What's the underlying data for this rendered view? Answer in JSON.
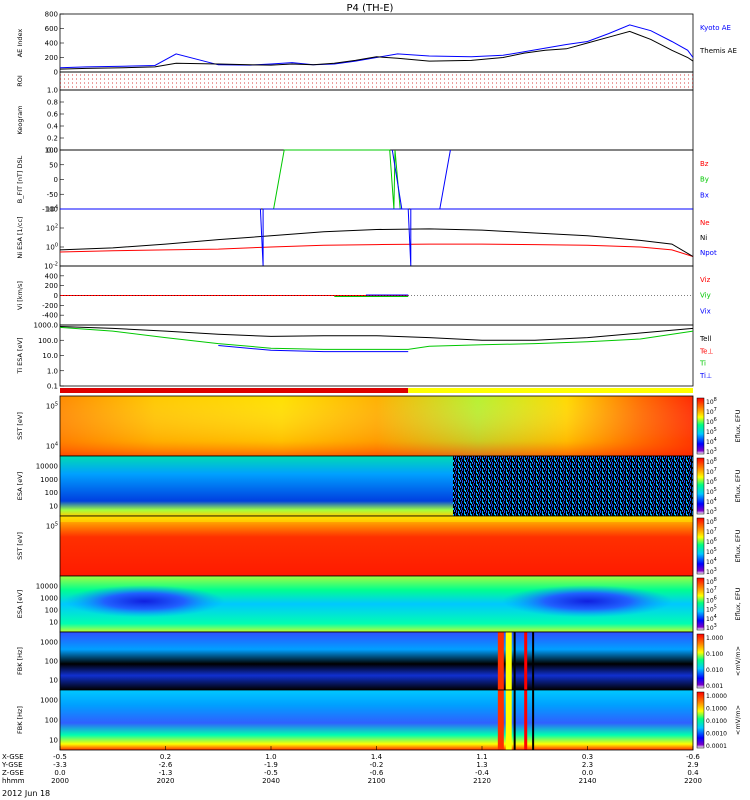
{
  "title": "P4 (TH-E)",
  "chart_data": [
    {
      "type": "line",
      "ylabel": "AE Index",
      "ylim": [
        0,
        800
      ],
      "yticks": [
        "0",
        "200",
        "400",
        "600",
        "800"
      ],
      "series": [
        {
          "name": "Kyoto AE",
          "color": "#0000ff",
          "x": [
            0,
            5,
            12,
            18,
            22,
            30,
            36,
            40,
            44,
            48,
            52,
            56,
            60,
            64,
            70,
            78,
            84,
            88,
            92,
            96,
            100,
            104,
            108,
            112,
            116,
            119,
            120
          ],
          "y": [
            60,
            70,
            80,
            90,
            250,
            100,
            95,
            110,
            130,
            100,
            110,
            150,
            200,
            250,
            220,
            210,
            230,
            280,
            330,
            380,
            420,
            530,
            650,
            570,
            420,
            300,
            200
          ]
        },
        {
          "name": "Themis AE",
          "color": "#000000",
          "x": [
            0,
            5,
            12,
            18,
            22,
            30,
            36,
            40,
            44,
            48,
            52,
            56,
            60,
            64,
            70,
            78,
            84,
            88,
            92,
            96,
            100,
            104,
            108,
            112,
            116,
            119,
            120
          ],
          "y": [
            40,
            50,
            60,
            70,
            120,
            110,
            100,
            95,
            110,
            100,
            120,
            160,
            210,
            190,
            150,
            160,
            200,
            260,
            300,
            320,
            400,
            480,
            560,
            450,
            300,
            200,
            150
          ]
        }
      ]
    },
    {
      "type": "line",
      "ylabel": "ROI",
      "yticks": [],
      "series": []
    },
    {
      "type": "line",
      "ylabel": "Keogram",
      "ylim": [
        0,
        1
      ],
      "yticks": [
        "0.0",
        "0.2",
        "0.4",
        "0.6",
        "0.8",
        "1.0"
      ],
      "series": []
    },
    {
      "type": "line",
      "ylabel": "B_FIT [nT] DSL",
      "ylim": [
        -100,
        100
      ],
      "yticks": [
        "-100",
        "-50",
        "0",
        "50",
        "100"
      ],
      "series": [
        {
          "name": "Bz",
          "color": "#ff0000",
          "x": [],
          "y": []
        },
        {
          "name": "By",
          "color": "#00c800",
          "x": [
            40.5,
            42.5,
            62.5,
            63.3,
            63.5,
            64.5
          ],
          "y": [
            -100,
            100,
            100,
            -100,
            100,
            -100
          ]
        },
        {
          "name": "Bx",
          "color": "#0000ff",
          "x": [
            63.0,
            64.8,
            72.0,
            74.0
          ],
          "y": [
            100,
            -100,
            -100,
            100
          ]
        }
      ]
    },
    {
      "type": "line",
      "ylabel": "Ni ESA [1/cc]",
      "ylim": [
        0.01,
        10000
      ],
      "ylog": true,
      "yticks": [
        "10^-2",
        "10^0",
        "10^2",
        "10^4"
      ],
      "series": [
        {
          "name": "Ne",
          "color": "#ff0000",
          "x": [
            0,
            10,
            20,
            30,
            40,
            50,
            60,
            70,
            80,
            90,
            100,
            110,
            116,
            120
          ],
          "y": [
            0.3,
            0.4,
            0.5,
            0.6,
            1,
            1.5,
            1.8,
            2,
            2,
            1.8,
            1.5,
            1,
            0.5,
            0.1
          ]
        },
        {
          "name": "Ni",
          "color": "#000000",
          "x": [
            0,
            10,
            20,
            30,
            40,
            50,
            60,
            70,
            80,
            90,
            100,
            110,
            116,
            120
          ],
          "y": [
            0.5,
            0.8,
            2,
            6,
            15,
            40,
            70,
            80,
            60,
            30,
            15,
            5,
            2,
            0.1
          ]
        },
        {
          "name": "Npot",
          "color": "#0000ff",
          "x": [
            0,
            38,
            38.5,
            38.5,
            66,
            66.5,
            66.5,
            120
          ],
          "y": [
            10000,
            10000,
            0.01,
            10000,
            10000,
            0.01,
            10000,
            10000
          ]
        }
      ]
    },
    {
      "type": "line",
      "ylabel": "Vi [km/s]",
      "ylim": [
        -600,
        600
      ],
      "yticks": [
        "-400",
        "-200",
        "0",
        "200",
        "400"
      ],
      "series": [
        {
          "name": "Viz",
          "color": "#ff0000",
          "x": [
            0,
            66
          ],
          "y": [
            0,
            0
          ]
        },
        {
          "name": "Viy",
          "color": "#00c800",
          "x": [
            52,
            66
          ],
          "y": [
            -20,
            -20
          ]
        },
        {
          "name": "Vix",
          "color": "#0000ff",
          "x": [
            58,
            66
          ],
          "y": [
            10,
            10
          ]
        }
      ]
    },
    {
      "type": "line",
      "ylabel": "Ti ESA [eV]",
      "ylim": [
        0.1,
        1000
      ],
      "ylog": true,
      "yticks": [
        "0.1",
        "1.0",
        "10.0",
        "100.0",
        "1000.0"
      ],
      "series": [
        {
          "name": "Tell",
          "color": "#000000",
          "x": [
            0,
            10,
            20,
            30,
            40,
            50,
            60,
            70,
            80,
            90,
            100,
            110,
            120
          ],
          "y": [
            800,
            600,
            400,
            250,
            180,
            200,
            200,
            150,
            100,
            100,
            150,
            300,
            600
          ]
        },
        {
          "name": "Te⊥",
          "color": "#ff0000",
          "x": [],
          "y": []
        },
        {
          "name": "Ti",
          "color": "#00c800",
          "x": [
            0,
            10,
            20,
            30,
            40,
            50,
            60,
            66,
            70,
            80,
            90,
            100,
            110,
            120
          ],
          "y": [
            700,
            400,
            150,
            60,
            30,
            25,
            25,
            25,
            40,
            50,
            60,
            80,
            120,
            400
          ]
        },
        {
          "name": "Ti⊥",
          "color": "#0000ff",
          "x": [
            30,
            40,
            50,
            60,
            66
          ],
          "y": [
            45,
            22,
            18,
            18,
            18
          ]
        }
      ]
    },
    {
      "type": "heatmap",
      "ylabel": "SST [eV]",
      "yticks": [
        "10^5",
        "10^4"
      ],
      "colorbar_label": "Eflux, EFU",
      "colorbar_ticks": [
        "10^8",
        "10^7",
        "10^6",
        "10^5",
        "10^4",
        "10^3"
      ]
    },
    {
      "type": "heatmap",
      "ylabel": "ESA [eV]",
      "yticks": [
        "10000",
        "1000",
        "100",
        "10"
      ],
      "colorbar_label": "Eflux, EFU",
      "colorbar_ticks": [
        "10^8",
        "10^7",
        "10^6",
        "10^5",
        "10^4",
        "10^3"
      ]
    },
    {
      "type": "heatmap",
      "ylabel": "SST [eV]",
      "yticks": [
        "10^5"
      ],
      "colorbar_label": "Eflux, EFU",
      "colorbar_ticks": [
        "10^8",
        "10^7",
        "10^6",
        "10^5",
        "10^4",
        "10^3"
      ]
    },
    {
      "type": "heatmap",
      "ylabel": "ESA [eV]",
      "yticks": [
        "10000",
        "1000",
        "100",
        "10"
      ],
      "colorbar_label": "Eflux, EFU",
      "colorbar_ticks": [
        "10^8",
        "10^7",
        "10^6",
        "10^5",
        "10^4",
        "10^3"
      ]
    },
    {
      "type": "heatmap",
      "ylabel": "FBK [Hz]",
      "yticks": [
        "1000",
        "100",
        "10"
      ],
      "colorbar_label": "<mV/m>",
      "colorbar_ticks": [
        "1.000",
        "0.100",
        "0.010",
        "0.001"
      ]
    },
    {
      "type": "heatmap",
      "ylabel": "FBK [Hz]",
      "yticks": [
        "1000",
        "100",
        "10"
      ],
      "colorbar_label": "<mV/m>",
      "colorbar_ticks": [
        "1.0000",
        "0.1000",
        "0.0100",
        "0.0010",
        "0.0001"
      ]
    }
  ],
  "x_axis": {
    "row_labels": [
      "X-GSE",
      "Y-GSE",
      "Z-GSE",
      "hhmm"
    ],
    "date": "2012 Jun 18",
    "ticks": [
      {
        "time": "2000",
        "x": "-0.5",
        "y": "-3.3",
        "z": "0.0"
      },
      {
        "time": "2020",
        "x": "0.2",
        "y": "-2.6",
        "z": "-1.3"
      },
      {
        "time": "2040",
        "x": "1.0",
        "y": "-1.9",
        "z": "-0.5"
      },
      {
        "time": "2100",
        "x": "1.4",
        "y": "-0.2",
        "z": "-0.6"
      },
      {
        "time": "2120",
        "x": "1.1",
        "y": "1.3",
        "z": "-0.4"
      },
      {
        "time": "2140",
        "x": "0.3",
        "y": "2.3",
        "z": "0.0"
      },
      {
        "time": "2200",
        "x": "-0.6",
        "y": "2.9",
        "z": "0.4"
      }
    ]
  }
}
